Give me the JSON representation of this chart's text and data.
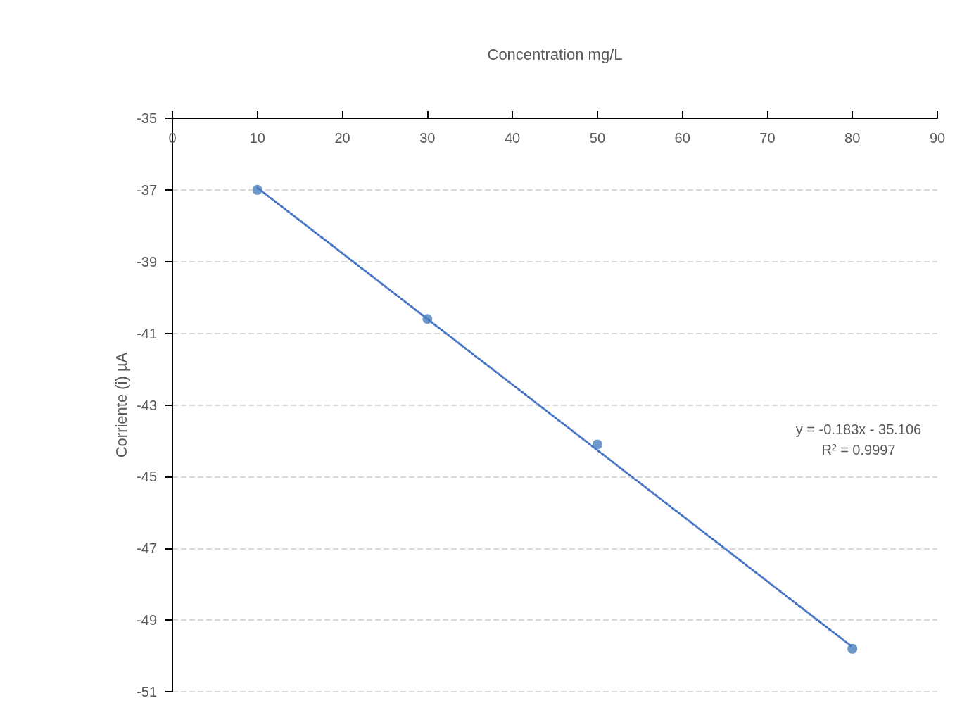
{
  "chart_data": {
    "type": "scatter",
    "xlabel": "Concentration mg/L",
    "ylabel": "Corriente (i) µA",
    "xlim": [
      0,
      90
    ],
    "xticks": [
      0,
      10,
      20,
      30,
      40,
      50,
      60,
      70,
      80,
      90
    ],
    "ylim": [
      -51,
      -35
    ],
    "yticks": [
      -51,
      -49,
      -47,
      -45,
      -43,
      -41,
      -39,
      -37,
      -35
    ],
    "grid": "y",
    "marker": "circle",
    "series": [
      {
        "type": "line",
        "color": "#4472c4",
        "x": [
          10,
          80
        ],
        "values": [
          -36.94,
          -49.75
        ],
        "line_style": "dotted",
        "marker": "none"
      },
      {
        "color": "#4a7ebb",
        "x": [
          10,
          30,
          50,
          80
        ],
        "values": [
          -37.0,
          -40.6,
          -44.1,
          -49.8
        ]
      }
    ],
    "annotations": [
      "y = -0.183x - 35.106",
      "R² = 0.9997"
    ]
  }
}
